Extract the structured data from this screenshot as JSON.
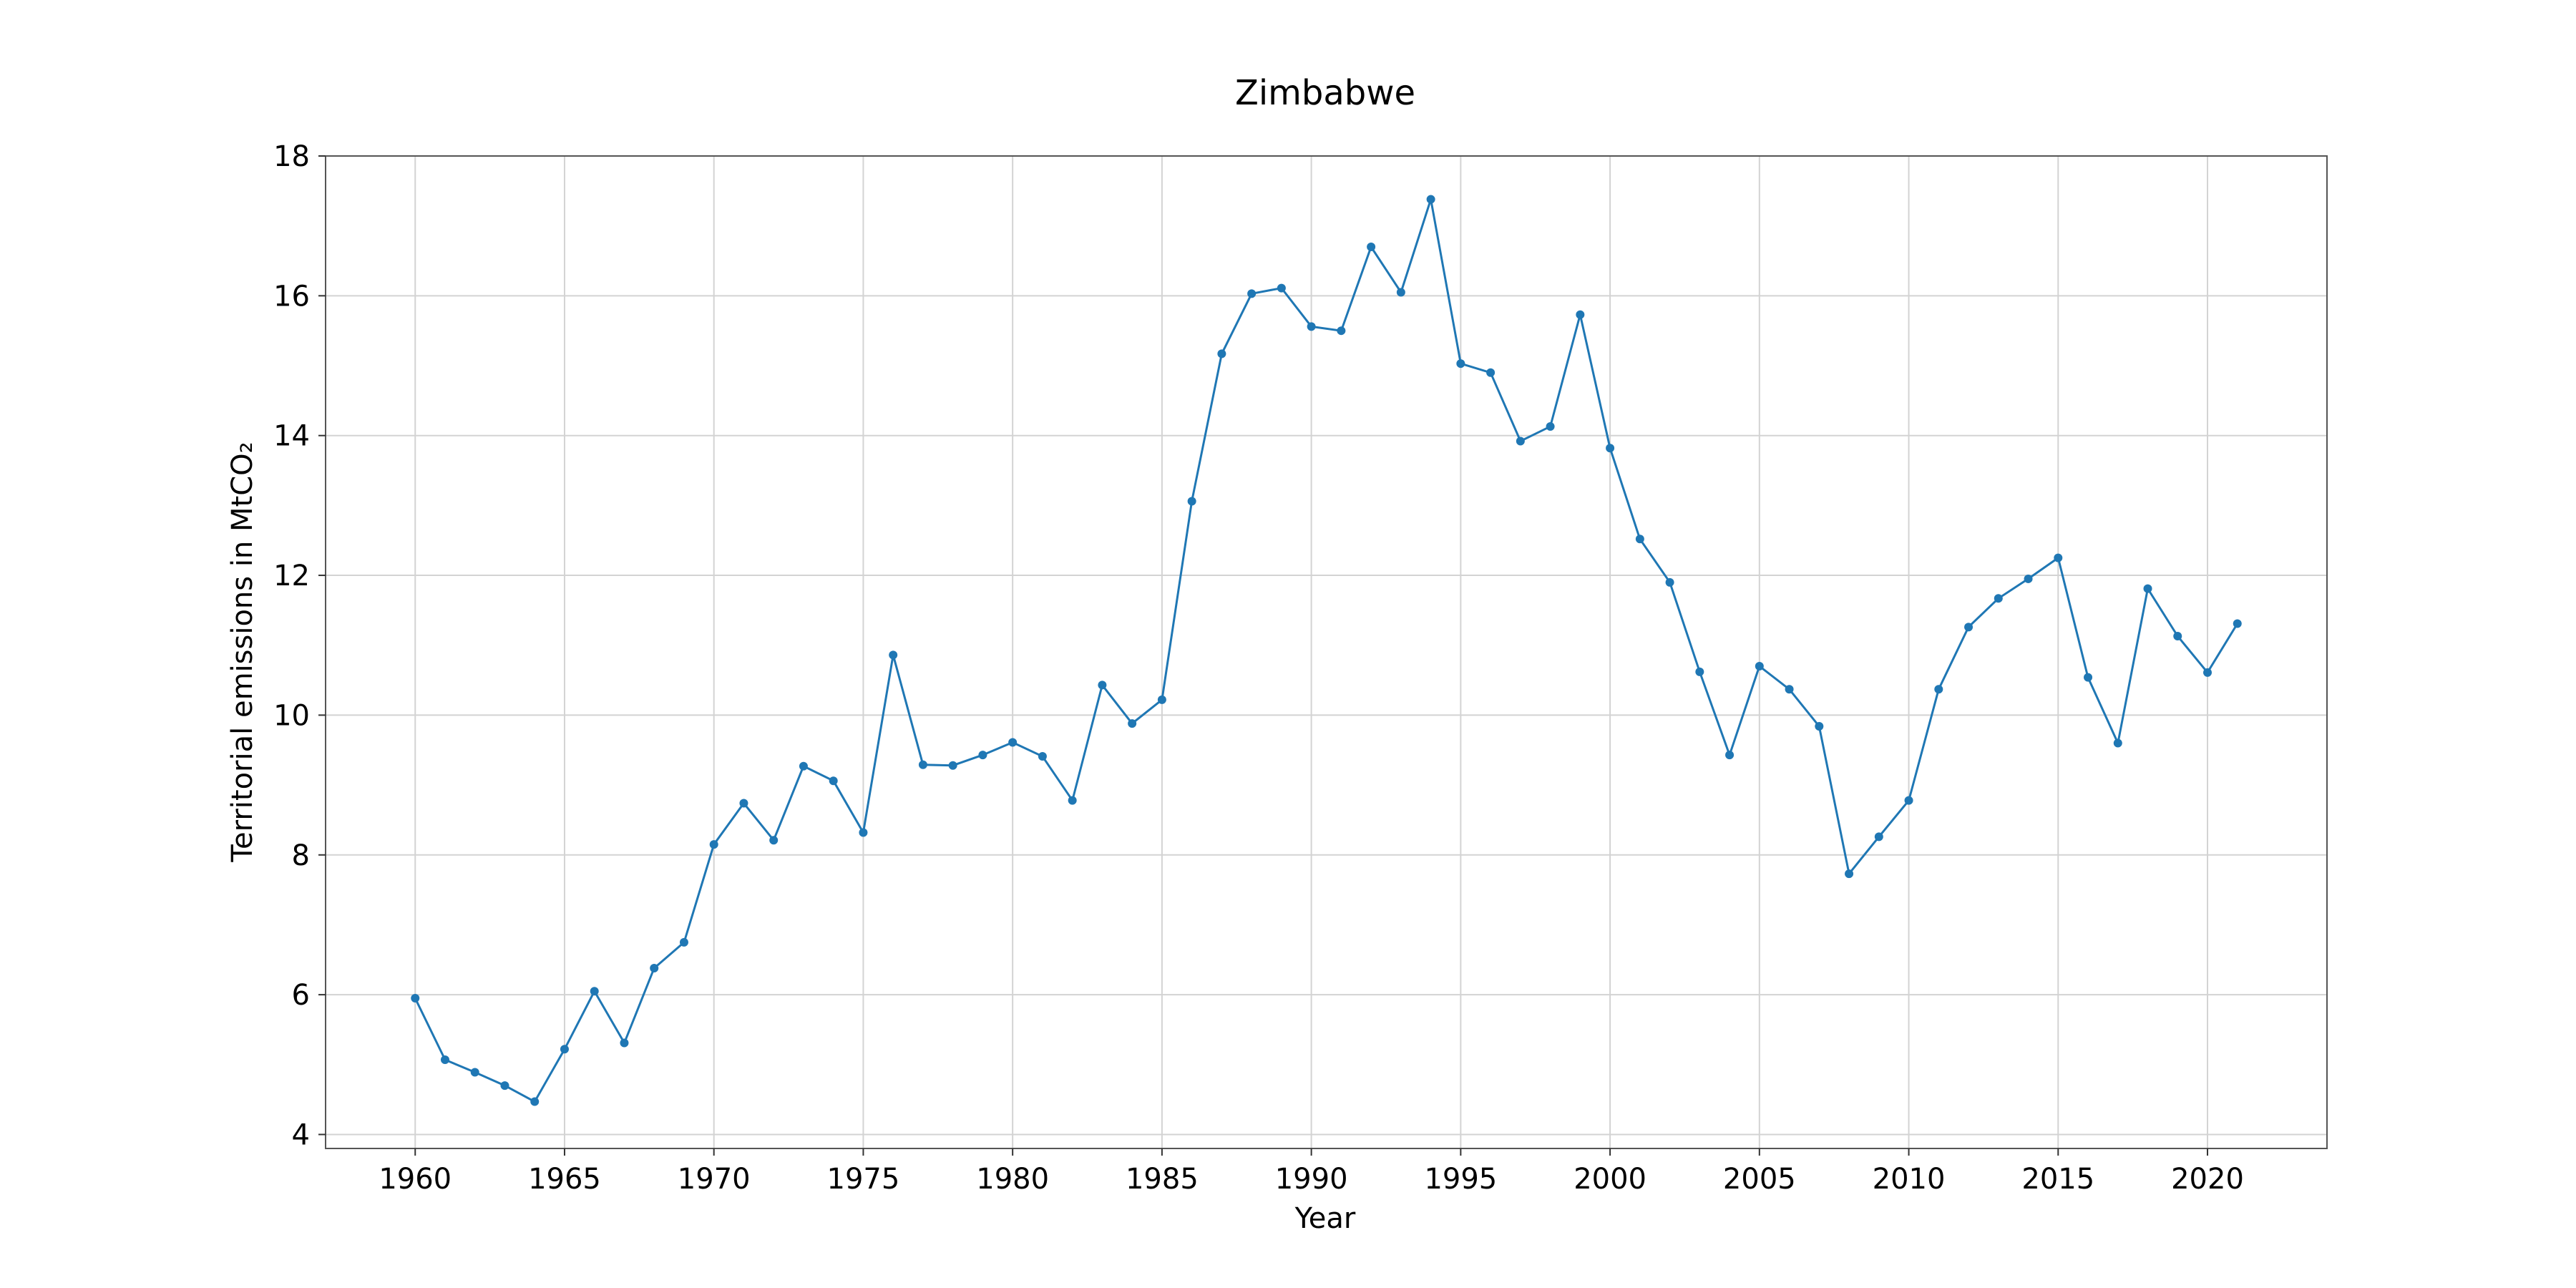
{
  "chart_data": {
    "type": "line",
    "title": "Zimbabwe",
    "xlabel": "Year",
    "ylabel": "Territorial emissions in MtCO₂",
    "xlim": [
      1957,
      2024
    ],
    "ylim": [
      3.8,
      18.0
    ],
    "xticks": [
      1960,
      1965,
      1970,
      1975,
      1980,
      1985,
      1990,
      1995,
      2000,
      2005,
      2010,
      2015,
      2020
    ],
    "yticks": [
      4,
      6,
      8,
      10,
      12,
      14,
      16,
      18
    ],
    "grid": true,
    "color": "#1f77b4",
    "series": [
      {
        "x": [
          1960,
          1961,
          1962,
          1963,
          1964,
          1965,
          1966,
          1967,
          1968,
          1969,
          1970,
          1971,
          1972,
          1973,
          1974,
          1975,
          1976,
          1977,
          1978,
          1979,
          1980,
          1981,
          1982,
          1983,
          1984,
          1985,
          1986,
          1987,
          1988,
          1989,
          1990,
          1991,
          1992,
          1993,
          1994,
          1995,
          1996,
          1997,
          1998,
          1999,
          2000,
          2001,
          2002,
          2003,
          2004,
          2005,
          2006,
          2007,
          2008,
          2009,
          2010,
          2011,
          2012,
          2013,
          2014,
          2015,
          2016,
          2017,
          2018,
          2019,
          2020,
          2021
        ],
        "values": [
          5.95,
          5.07,
          4.89,
          4.7,
          4.47,
          5.22,
          6.05,
          5.31,
          6.38,
          6.75,
          8.15,
          8.74,
          8.21,
          9.27,
          9.06,
          8.32,
          10.86,
          9.29,
          9.28,
          9.43,
          9.61,
          9.41,
          8.78,
          10.43,
          9.88,
          10.22,
          13.06,
          15.17,
          16.03,
          16.11,
          15.56,
          15.5,
          16.7,
          16.05,
          17.38,
          15.03,
          14.9,
          13.92,
          14.13,
          15.73,
          13.82,
          12.52,
          11.9,
          10.62,
          9.43,
          10.7,
          10.37,
          9.84,
          7.73,
          8.26,
          8.78,
          10.37,
          11.26,
          11.67,
          11.95,
          12.25,
          10.54,
          9.6,
          11.81,
          11.13,
          10.61,
          11.31
        ]
      }
    ]
  }
}
